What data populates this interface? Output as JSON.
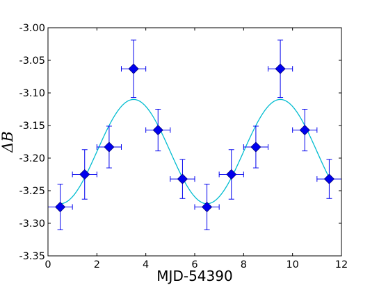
{
  "chart_data": {
    "type": "scatter",
    "xlabel": "MJD-54390",
    "ylabel": "ΔB",
    "xlim": [
      0,
      12
    ],
    "ylim": [
      -3.35,
      -3.0
    ],
    "xticks": [
      "0",
      "2",
      "4",
      "6",
      "8",
      "10",
      "12"
    ],
    "yticks": [
      "-3.35",
      "-3.30",
      "-3.25",
      "-3.20",
      "-3.15",
      "-3.10",
      "-3.05",
      "-3.00"
    ],
    "grid": false,
    "series": [
      {
        "kind": "points-with-errorbars",
        "color": "#0000ee",
        "marker": "diamond",
        "points": [
          {
            "x": 0.5,
            "y": -3.275,
            "xerr": 0.5,
            "yerr": 0.035
          },
          {
            "x": 1.5,
            "y": -3.225,
            "xerr": 0.5,
            "yerr": 0.038
          },
          {
            "x": 2.5,
            "y": -3.183,
            "xerr": 0.5,
            "yerr": 0.032
          },
          {
            "x": 3.5,
            "y": -3.063,
            "xerr": 0.5,
            "yerr": 0.044
          },
          {
            "x": 4.5,
            "y": -3.157,
            "xerr": 0.5,
            "yerr": 0.032
          },
          {
            "x": 5.5,
            "y": -3.232,
            "xerr": 0.5,
            "yerr": 0.03
          },
          {
            "x": 6.5,
            "y": -3.275,
            "xerr": 0.5,
            "yerr": 0.035
          },
          {
            "x": 7.5,
            "y": -3.225,
            "xerr": 0.5,
            "yerr": 0.038
          },
          {
            "x": 8.5,
            "y": -3.183,
            "xerr": 0.5,
            "yerr": 0.032
          },
          {
            "x": 9.5,
            "y": -3.063,
            "xerr": 0.5,
            "yerr": 0.044
          },
          {
            "x": 10.5,
            "y": -3.157,
            "xerr": 0.5,
            "yerr": 0.032
          },
          {
            "x": 11.5,
            "y": -3.232,
            "xerr": 0.5,
            "yerr": 0.03
          }
        ]
      },
      {
        "kind": "sinusoid-fit",
        "color": "#00bcd0",
        "mean": -3.19,
        "amplitude": 0.08,
        "period": 6.0,
        "peak_x": 3.5,
        "x_range": [
          0.5,
          11.5
        ]
      }
    ]
  }
}
